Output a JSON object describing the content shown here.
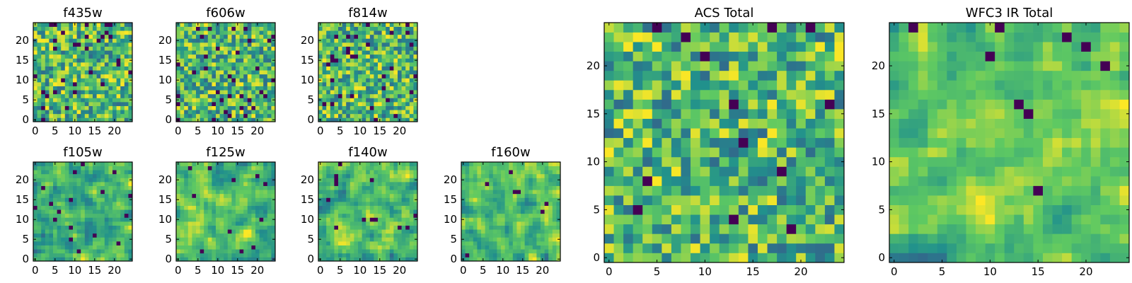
{
  "figure": {
    "background": "#ffffff",
    "colormap": "viridis",
    "colormap_stops": [
      "#440154",
      "#3b528b",
      "#21918c",
      "#5ec962",
      "#fde725"
    ]
  },
  "chart_data": [
    {
      "type": "heatmap",
      "title": "f435w",
      "grid_size": 25,
      "x_ticks": [
        "0",
        "5",
        "10",
        "15",
        "20"
      ],
      "y_ticks": [
        "0",
        "5",
        "10",
        "15",
        "20"
      ],
      "xlim": [
        -0.5,
        24.5
      ],
      "ylim": [
        -0.5,
        24.5
      ],
      "colormap": "viridis",
      "value_range": [
        0,
        1
      ],
      "smoothing": 0,
      "dark_fraction": 0.05,
      "seed": 11
    },
    {
      "type": "heatmap",
      "title": "f606w",
      "grid_size": 25,
      "x_ticks": [
        "0",
        "5",
        "10",
        "15",
        "20"
      ],
      "y_ticks": [
        "0",
        "5",
        "10",
        "15",
        "20"
      ],
      "xlim": [
        -0.5,
        24.5
      ],
      "ylim": [
        -0.5,
        24.5
      ],
      "colormap": "viridis",
      "value_range": [
        0,
        1
      ],
      "smoothing": 0,
      "dark_fraction": 0.05,
      "seed": 23
    },
    {
      "type": "heatmap",
      "title": "f814w",
      "grid_size": 25,
      "x_ticks": [
        "0",
        "5",
        "10",
        "15",
        "20"
      ],
      "y_ticks": [
        "0",
        "5",
        "10",
        "15",
        "20"
      ],
      "xlim": [
        -0.5,
        24.5
      ],
      "ylim": [
        -0.5,
        24.5
      ],
      "colormap": "viridis",
      "value_range": [
        0,
        1
      ],
      "smoothing": 0,
      "dark_fraction": 0.05,
      "seed": 37
    },
    {
      "type": "heatmap",
      "title": "f105w",
      "grid_size": 25,
      "x_ticks": [
        "0",
        "5",
        "10",
        "15",
        "20"
      ],
      "y_ticks": [
        "0",
        "5",
        "10",
        "15",
        "20"
      ],
      "xlim": [
        -0.5,
        24.5
      ],
      "ylim": [
        -0.5,
        24.5
      ],
      "colormap": "viridis",
      "value_range": [
        0,
        1
      ],
      "smoothing": 1,
      "dark_fraction": 0.02,
      "seed": 41
    },
    {
      "type": "heatmap",
      "title": "f125w",
      "grid_size": 25,
      "x_ticks": [
        "0",
        "5",
        "10",
        "15",
        "20"
      ],
      "y_ticks": [
        "0",
        "5",
        "10",
        "15",
        "20"
      ],
      "xlim": [
        -0.5,
        24.5
      ],
      "ylim": [
        -0.5,
        24.5
      ],
      "colormap": "viridis",
      "value_range": [
        0,
        1
      ],
      "smoothing": 1,
      "dark_fraction": 0.02,
      "seed": 53
    },
    {
      "type": "heatmap",
      "title": "f140w",
      "grid_size": 25,
      "x_ticks": [
        "0",
        "5",
        "10",
        "15",
        "20"
      ],
      "y_ticks": [
        "0",
        "5",
        "10",
        "15",
        "20"
      ],
      "xlim": [
        -0.5,
        24.5
      ],
      "ylim": [
        -0.5,
        24.5
      ],
      "colormap": "viridis",
      "value_range": [
        0,
        1
      ],
      "smoothing": 1,
      "dark_fraction": 0.02,
      "seed": 67
    },
    {
      "type": "heatmap",
      "title": "f160w",
      "grid_size": 25,
      "x_ticks": [
        "0",
        "5",
        "10",
        "15",
        "20"
      ],
      "y_ticks": [
        "0",
        "5",
        "10",
        "15",
        "20"
      ],
      "xlim": [
        -0.5,
        24.5
      ],
      "ylim": [
        -0.5,
        24.5
      ],
      "colormap": "viridis",
      "value_range": [
        0,
        1
      ],
      "smoothing": 1,
      "dark_fraction": 0.02,
      "seed": 79
    },
    {
      "type": "heatmap",
      "title": "ACS Total",
      "grid_size": 25,
      "x_ticks": [
        "0",
        "5",
        "10",
        "15",
        "20"
      ],
      "y_ticks": [
        "0",
        "5",
        "10",
        "15",
        "20"
      ],
      "xlim": [
        -0.5,
        24.5
      ],
      "ylim": [
        -0.5,
        24.5
      ],
      "colormap": "viridis",
      "value_range": [
        0,
        1
      ],
      "smoothing": 0,
      "dark_fraction": 0.025,
      "seed": 83
    },
    {
      "type": "heatmap",
      "title": "WFC3 IR Total",
      "grid_size": 25,
      "x_ticks": [
        "0",
        "5",
        "10",
        "15",
        "20"
      ],
      "y_ticks": [
        "0",
        "5",
        "10",
        "15",
        "20"
      ],
      "xlim": [
        -0.5,
        24.5
      ],
      "ylim": [
        -0.5,
        24.5
      ],
      "colormap": "viridis",
      "value_range": [
        0,
        1
      ],
      "smoothing": 1,
      "dark_fraction": 0.015,
      "seed": 97
    }
  ]
}
